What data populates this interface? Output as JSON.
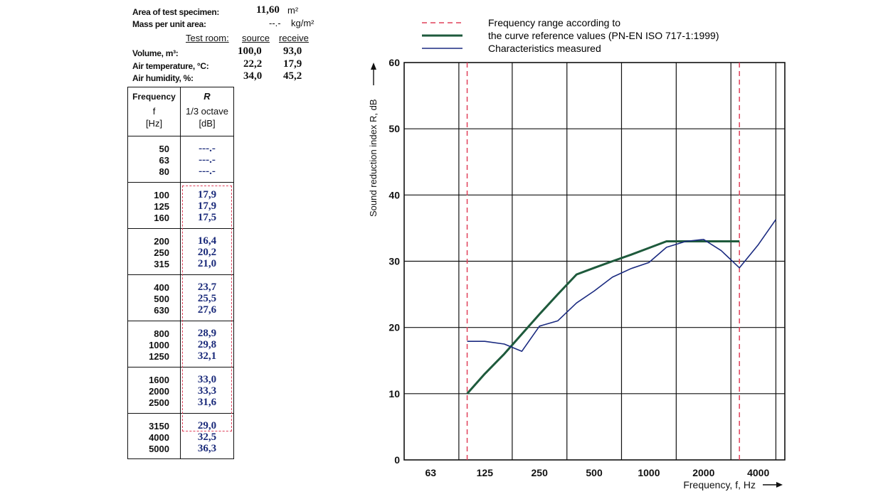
{
  "specimen": {
    "area_label": "Area of test specimen:",
    "area_value": "11,60",
    "area_unit": "m²",
    "mass_label": "Mass per unit area:",
    "mass_value": "--.-",
    "mass_unit": "kg/m²",
    "test_room_label": "Test room:",
    "source_label": "source",
    "receive_label": "receive",
    "volume_label": "Volume, m³:",
    "volume_source": "100,0",
    "volume_receive": "93,0",
    "temp_label": "Air temperature, °C:",
    "temp_source": "22,2",
    "temp_receive": "17,9",
    "humidity_label": "Air humidity, %:",
    "humidity_source": "34,0",
    "humidity_receive": "45,2"
  },
  "table": {
    "col1_line1": "Frequency",
    "col1_line2": "f",
    "col1_line3": "[Hz]",
    "col2_line1": "R",
    "col2_line2": "1/3 octave",
    "col2_line3": "[dB]",
    "groups": [
      [
        {
          "f": "50",
          "r": "---.-"
        },
        {
          "f": "63",
          "r": "---.-"
        },
        {
          "f": "80",
          "r": "---.-"
        }
      ],
      [
        {
          "f": "100",
          "r": "17,9"
        },
        {
          "f": "125",
          "r": "17,9"
        },
        {
          "f": "160",
          "r": "17,5"
        }
      ],
      [
        {
          "f": "200",
          "r": "16,4"
        },
        {
          "f": "250",
          "r": "20,2"
        },
        {
          "f": "315",
          "r": "21,0"
        }
      ],
      [
        {
          "f": "400",
          "r": "23,7"
        },
        {
          "f": "500",
          "r": "25,5"
        },
        {
          "f": "630",
          "r": "27,6"
        }
      ],
      [
        {
          "f": "800",
          "r": "28,9"
        },
        {
          "f": "1000",
          "r": "29,8"
        },
        {
          "f": "1250",
          "r": "32,1"
        }
      ],
      [
        {
          "f": "1600",
          "r": "33,0"
        },
        {
          "f": "2000",
          "r": "33,3"
        },
        {
          "f": "2500",
          "r": "31,6"
        }
      ],
      [
        {
          "f": "3150",
          "r": "29,0"
        },
        {
          "f": "4000",
          "r": "32,5"
        },
        {
          "f": "5000",
          "r": "36,3"
        }
      ]
    ]
  },
  "legend": {
    "range_label": "Frequency range according to",
    "reference_label": "the curve reference values (PN-EN ISO 717-1:1999)",
    "measured_label": "Characteristics measured"
  },
  "colors": {
    "range": "#e0405a",
    "reference": "#1e5a3c",
    "measured": "#1a2a80",
    "grid": "#111111"
  },
  "chart_data": {
    "type": "line",
    "xlabel": "Frequency, f, Hz",
    "ylabel": "Sound reduction index R, dB",
    "x_scale": "log",
    "xlim": [
      45,
      5600
    ],
    "ylim": [
      0,
      60
    ],
    "x_ticks": [
      63,
      125,
      250,
      500,
      1000,
      2000,
      4000
    ],
    "x_tick_labels": [
      "63",
      "125",
      "250",
      "500",
      "1000",
      "2000",
      "4000"
    ],
    "y_ticks": [
      0,
      10,
      20,
      30,
      40,
      50,
      60
    ],
    "y_tick_labels": [
      "0",
      "10",
      "20",
      "30",
      "40",
      "50",
      "60"
    ],
    "grid": true,
    "legend_position": "top",
    "range_lines": [
      100,
      3150
    ],
    "series": [
      {
        "name": "the curve reference values (PN-EN ISO 717-1:1999)",
        "style": "solid-thick",
        "x": [
          100,
          125,
          160,
          200,
          250,
          315,
          400,
          500,
          630,
          800,
          1000,
          1250,
          1600,
          2000,
          2500,
          3150
        ],
        "y": [
          10,
          13,
          16,
          19,
          22,
          25,
          28,
          29,
          30,
          31,
          32,
          33,
          33,
          33,
          33,
          33
        ]
      },
      {
        "name": "Characteristics measured",
        "style": "solid-thin",
        "x": [
          100,
          125,
          160,
          200,
          250,
          315,
          400,
          500,
          630,
          800,
          1000,
          1250,
          1600,
          2000,
          2500,
          3150,
          4000,
          5000
        ],
        "y": [
          17.9,
          17.9,
          17.5,
          16.4,
          20.2,
          21.0,
          23.7,
          25.5,
          27.6,
          28.9,
          29.8,
          32.1,
          33.0,
          33.3,
          31.6,
          29.0,
          32.5,
          36.3
        ]
      }
    ]
  }
}
